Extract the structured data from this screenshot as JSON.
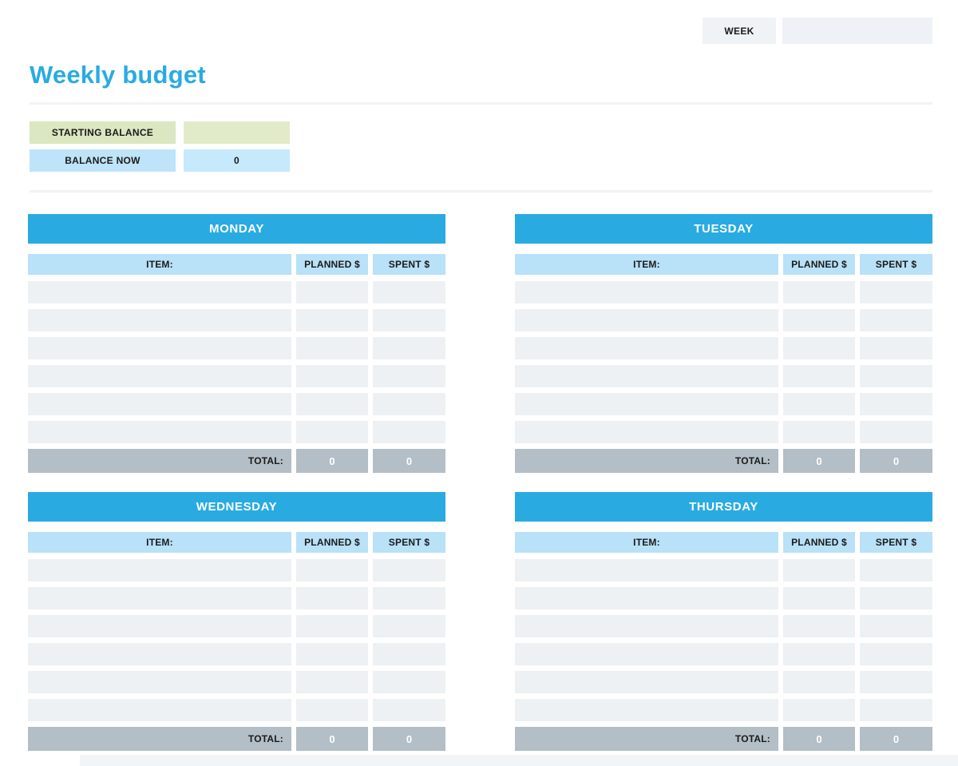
{
  "colors": {
    "accent_blue": "#29abe2",
    "header_light_blue": "#b9e1f7",
    "row_gray": "#edf1f4",
    "total_gray": "#b3bec6",
    "green_label_bg": "#dbe7c0",
    "green_value_bg": "#e1ebc9",
    "blue_label_bg": "#bfe3f8",
    "blue_value_bg": "#c6e9fb",
    "week_label_bg": "#f0f3f6",
    "week_value_bg": "#eef1f5"
  },
  "week_bar": {
    "label": "WEEK",
    "value": ""
  },
  "title": "Weekly budget",
  "balance": {
    "starting_label": "STARTING BALANCE",
    "starting_value": "",
    "now_label": "BALANCE NOW",
    "now_value": "0"
  },
  "columns": {
    "item": "ITEM:",
    "planned": "PLANNED $",
    "spent": "SPENT $"
  },
  "total_label": "TOTAL:",
  "days": [
    {
      "name": "MONDAY",
      "rows": [
        {
          "item": "",
          "planned": "",
          "spent": ""
        },
        {
          "item": "",
          "planned": "",
          "spent": ""
        },
        {
          "item": "",
          "planned": "",
          "spent": ""
        },
        {
          "item": "",
          "planned": "",
          "spent": ""
        },
        {
          "item": "",
          "planned": "",
          "spent": ""
        },
        {
          "item": "",
          "planned": "",
          "spent": ""
        }
      ],
      "totals": {
        "planned": "0",
        "spent": "0"
      }
    },
    {
      "name": "TUESDAY",
      "rows": [
        {
          "item": "",
          "planned": "",
          "spent": ""
        },
        {
          "item": "",
          "planned": "",
          "spent": ""
        },
        {
          "item": "",
          "planned": "",
          "spent": ""
        },
        {
          "item": "",
          "planned": "",
          "spent": ""
        },
        {
          "item": "",
          "planned": "",
          "spent": ""
        },
        {
          "item": "",
          "planned": "",
          "spent": ""
        }
      ],
      "totals": {
        "planned": "0",
        "spent": "0"
      }
    },
    {
      "name": "WEDNESDAY",
      "rows": [
        {
          "item": "",
          "planned": "",
          "spent": ""
        },
        {
          "item": "",
          "planned": "",
          "spent": ""
        },
        {
          "item": "",
          "planned": "",
          "spent": ""
        },
        {
          "item": "",
          "planned": "",
          "spent": ""
        },
        {
          "item": "",
          "planned": "",
          "spent": ""
        },
        {
          "item": "",
          "planned": "",
          "spent": ""
        }
      ],
      "totals": {
        "planned": "0",
        "spent": "0"
      }
    },
    {
      "name": "THURSDAY",
      "rows": [
        {
          "item": "",
          "planned": "",
          "spent": ""
        },
        {
          "item": "",
          "planned": "",
          "spent": ""
        },
        {
          "item": "",
          "planned": "",
          "spent": ""
        },
        {
          "item": "",
          "planned": "",
          "spent": ""
        },
        {
          "item": "",
          "planned": "",
          "spent": ""
        },
        {
          "item": "",
          "planned": "",
          "spent": ""
        }
      ],
      "totals": {
        "planned": "0",
        "spent": "0"
      }
    }
  ]
}
